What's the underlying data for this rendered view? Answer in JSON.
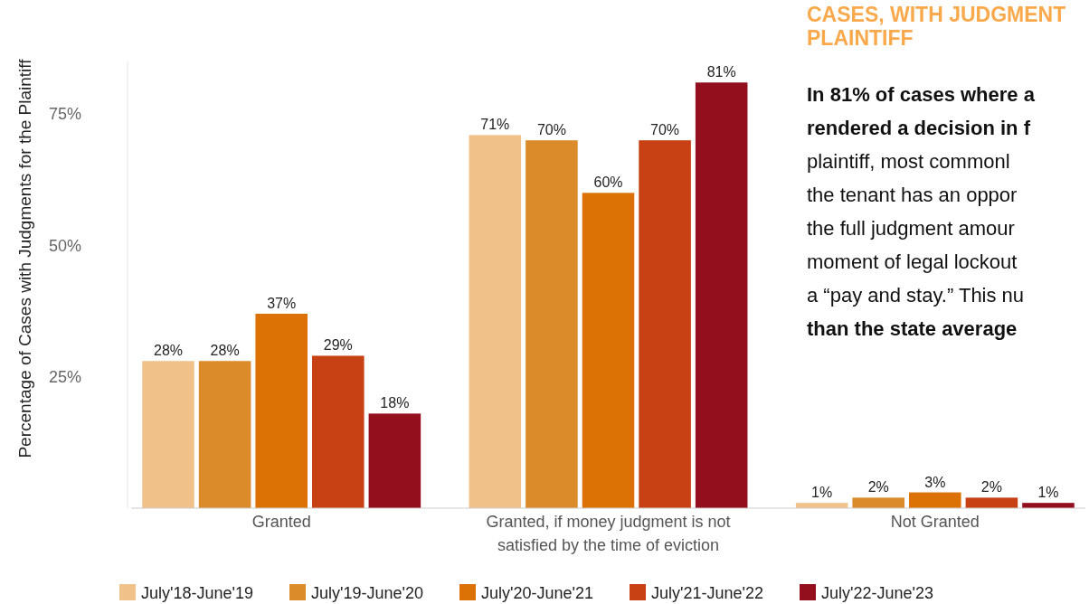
{
  "chart_data": {
    "type": "bar",
    "title": "CASES, WITH JUDGMENT\nPLAINTIFF",
    "ylabel": "Percentage of Cases with Judgments for the Plaintiff",
    "categories": [
      "Granted",
      "Granted, if money judgment is not satisfied by the time of eviction",
      "Not Granted"
    ],
    "series": [
      {
        "name": "July'18-June'19",
        "color": "#f0c28a",
        "values": [
          28,
          71,
          1
        ],
        "value_labels": [
          "28%",
          "71%",
          "1%"
        ]
      },
      {
        "name": "July'19-June'20",
        "color": "#dc8b2a",
        "values": [
          28,
          70,
          2
        ],
        "value_labels": [
          "28%",
          "70%",
          "2%"
        ]
      },
      {
        "name": "July'20-June'21",
        "color": "#dc7206",
        "values": [
          37,
          60,
          3
        ],
        "value_labels": [
          "37%",
          "60%",
          "3%"
        ]
      },
      {
        "name": "July'21-June'22",
        "color": "#c84114",
        "values": [
          29,
          70,
          2
        ],
        "value_labels": [
          "29%",
          "70%",
          "2%"
        ]
      },
      {
        "name": "July'22-June'23",
        "color": "#930f1e",
        "values": [
          18,
          81,
          1
        ],
        "value_labels": [
          "18%",
          "81%",
          "1%"
        ]
      }
    ],
    "yticks": [
      {
        "value": 25,
        "label": "25%"
      },
      {
        "value": 50,
        "label": "50%"
      },
      {
        "value": 75,
        "label": "75%"
      }
    ],
    "ylim": [
      0,
      85
    ],
    "legend": "bottom",
    "grid": false,
    "annotations": [
      "In 81% of cases where a",
      "rendered a decision in f",
      "plaintiff, most commonl",
      "the tenant has an oppor",
      "the full judgment amour",
      "moment of legal lockout",
      "a “pay and stay.” This nu",
      "than the state average"
    ]
  }
}
